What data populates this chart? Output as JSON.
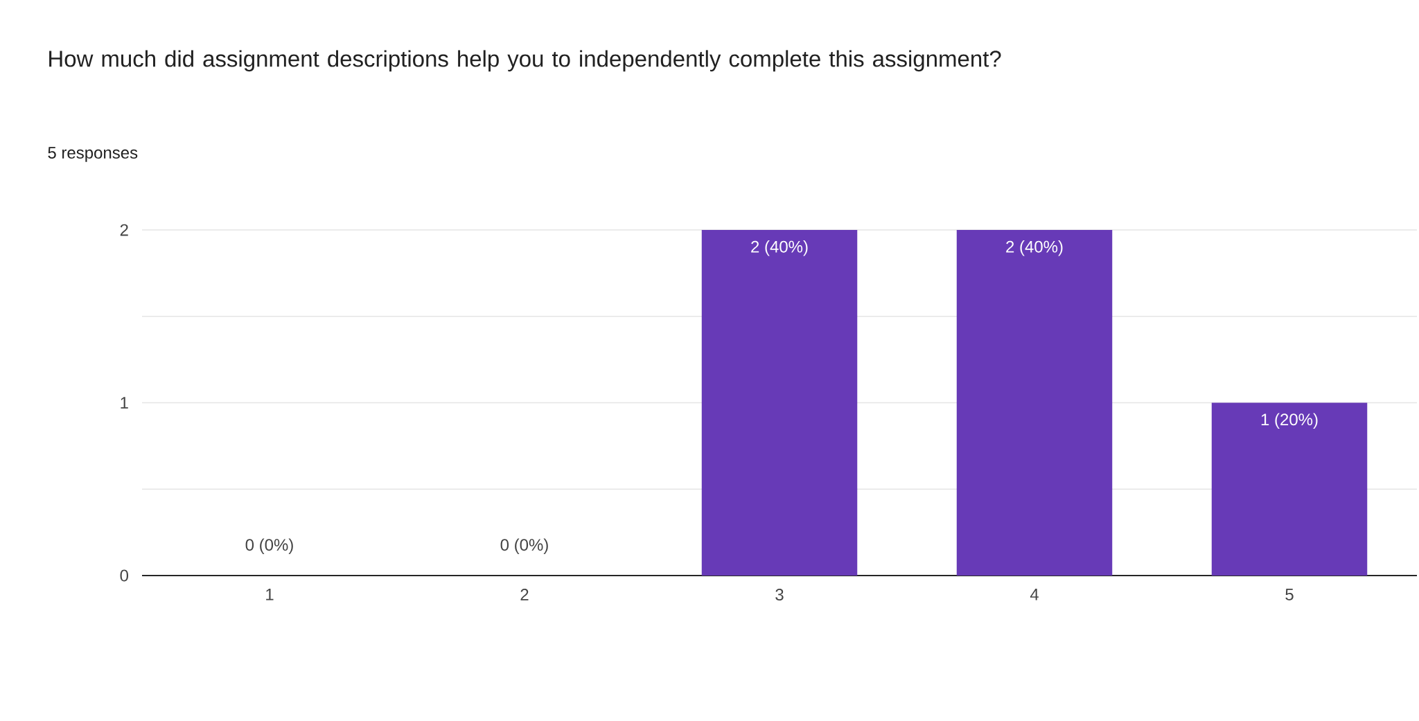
{
  "chart_data": {
    "type": "bar",
    "title": "How much did assignment descriptions help you to independently complete this assignment?",
    "subtitle": "5 responses",
    "categories": [
      "1",
      "2",
      "3",
      "4",
      "5"
    ],
    "values": [
      0,
      0,
      2,
      2,
      1
    ],
    "value_labels": [
      "0 (0%)",
      "0 (0%)",
      "2 (40%)",
      "2 (40%)",
      "1 (20%)"
    ],
    "color": "#673ab7",
    "ylim": [
      0,
      2
    ],
    "yticks": [
      0,
      {
        "value": 0.5,
        "label": null
      },
      1,
      {
        "value": 1.5,
        "label": null
      },
      2
    ],
    "grid": "y"
  }
}
